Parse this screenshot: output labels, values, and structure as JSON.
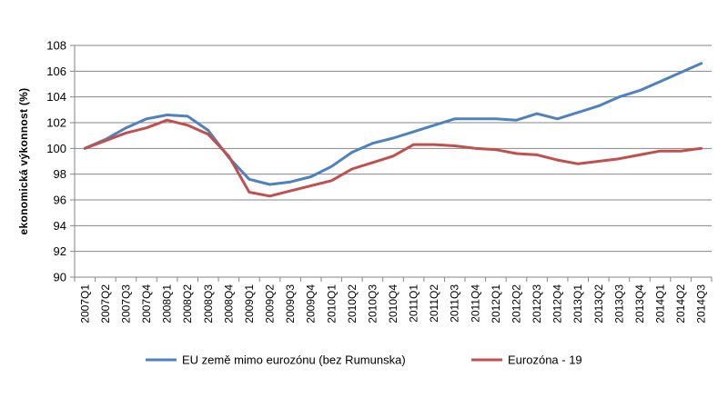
{
  "chart_data": {
    "type": "line",
    "title": "",
    "xlabel": "",
    "ylabel": "ekonomická výkonnost  (%)",
    "ylim": [
      90,
      108
    ],
    "yticks": [
      90,
      92,
      94,
      96,
      98,
      100,
      102,
      104,
      106,
      108
    ],
    "grid": "horizontal",
    "legend_position": "bottom",
    "categories": [
      "2007Q1",
      "2007Q2",
      "2007Q3",
      "2007Q4",
      "2008Q1",
      "2008Q2",
      "2008Q3",
      "2008Q4",
      "2009Q1",
      "2009Q2",
      "2009Q3",
      "2009Q4",
      "2010Q1",
      "2010Q2",
      "2010Q3",
      "2010Q4",
      "2011Q1",
      "2011Q2",
      "2011Q3",
      "2011Q4",
      "2012Q1",
      "2012Q2",
      "2012Q3",
      "2012Q4",
      "2013Q1",
      "2013Q2",
      "2013Q3",
      "2013Q4",
      "2014Q1",
      "2014Q2",
      "2014Q3"
    ],
    "series": [
      {
        "name": "EU země mimo eurozónu (bez Rumunska)",
        "color": "#4F81BD",
        "values": [
          100.0,
          100.7,
          101.6,
          102.3,
          102.6,
          102.5,
          101.4,
          99.3,
          97.6,
          97.2,
          97.4,
          97.8,
          98.6,
          99.7,
          100.4,
          100.8,
          101.3,
          101.8,
          102.3,
          102.3,
          102.3,
          102.2,
          102.7,
          102.3,
          102.8,
          103.3,
          104.0,
          104.5,
          105.2,
          105.9,
          106.6
        ]
      },
      {
        "name": "Eurozóna - 19",
        "color": "#C0504D",
        "values": [
          100.0,
          100.6,
          101.2,
          101.6,
          102.2,
          101.8,
          101.1,
          99.4,
          96.6,
          96.3,
          96.7,
          97.1,
          97.5,
          98.4,
          98.9,
          99.4,
          100.3,
          100.3,
          100.2,
          100.0,
          99.9,
          99.6,
          99.5,
          99.1,
          98.8,
          99.0,
          99.2,
          99.5,
          99.8,
          99.8,
          100.0
        ]
      }
    ]
  }
}
